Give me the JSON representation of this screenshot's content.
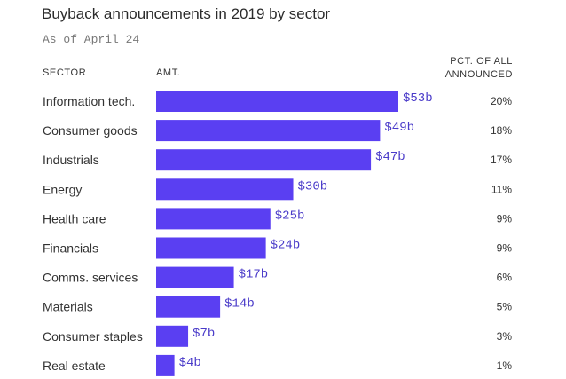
{
  "chart_data": {
    "type": "bar",
    "orientation": "horizontal",
    "title": "Buyback announcements in 2019 by sector",
    "subtitle": "As of April 24",
    "column_headers": {
      "sector": "SECTOR",
      "amount": "AMT.",
      "pct_line1": "PCT. OF ALL",
      "pct_line2": "ANNOUNCED"
    },
    "categories": [
      "Information tech.",
      "Consumer goods",
      "Industrials",
      "Energy",
      "Health care",
      "Financials",
      "Comms. services",
      "Materials",
      "Consumer staples",
      "Real estate"
    ],
    "values": [
      53,
      49,
      47,
      30,
      25,
      24,
      17,
      14,
      7,
      4
    ],
    "value_labels": [
      "$53b",
      "$49b",
      "$47b",
      "$30b",
      "$25b",
      "$24b",
      "$17b",
      "$14b",
      "$7b",
      "$4b"
    ],
    "pct_labels": [
      "20%",
      "18%",
      "17%",
      "11%",
      "9%",
      "9%",
      "6%",
      "5%",
      "3%",
      "1%"
    ],
    "xlim": [
      0,
      53
    ],
    "unit": "$ billions",
    "bar_color": "#5a3ff2",
    "label_color": "#4a3bc9"
  }
}
